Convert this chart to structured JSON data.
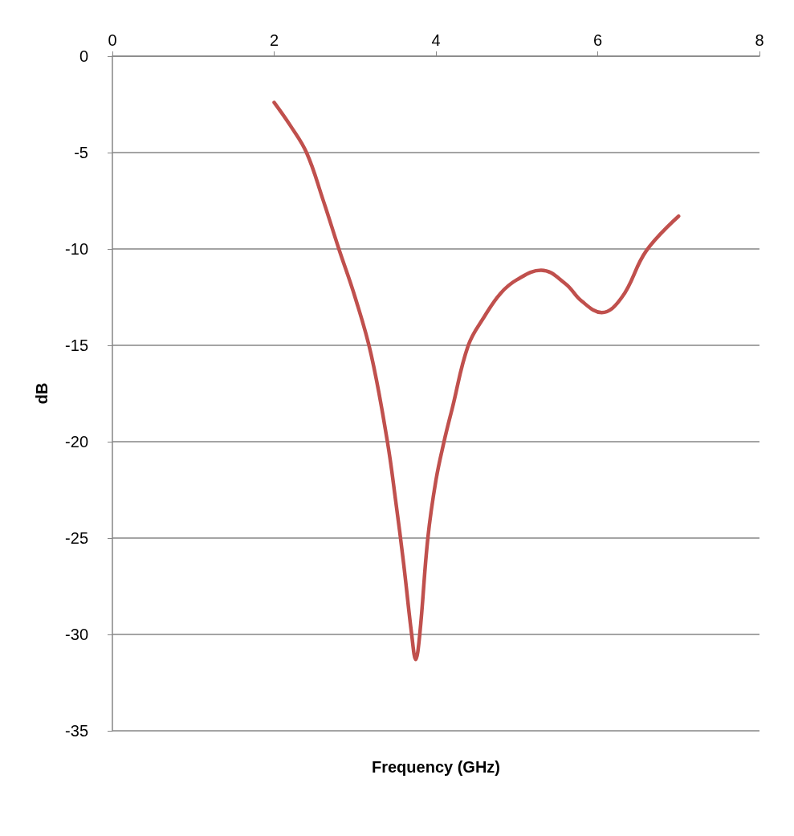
{
  "chart_data": {
    "type": "line",
    "xlabel": "Frequency (GHz)",
    "ylabel": "dB",
    "xlim": [
      0,
      8
    ],
    "xticks": [
      0,
      2,
      4,
      6,
      8
    ],
    "ylim": [
      -35,
      0
    ],
    "yticks": [
      -35,
      -30,
      -25,
      -20,
      -15,
      -10,
      -5,
      0
    ],
    "grid": "y",
    "marker": "none",
    "line_style": "solid",
    "series": [
      {
        "color": "#c0504d",
        "x": [
          2,
          2.2,
          2.4,
          2.6,
          2.8,
          3.0,
          3.2,
          3.4,
          3.5,
          3.6,
          3.7,
          3.75,
          3.8,
          3.9,
          4.0,
          4.1,
          4.2,
          4.4,
          4.6,
          4.8,
          5.0,
          5.3,
          5.6,
          5.8,
          6.05,
          6.3,
          6.6,
          7.0
        ],
        "values": [
          -2.4,
          -3.6,
          -5.0,
          -7.4,
          -10.0,
          -12.5,
          -15.5,
          -20.0,
          -23.0,
          -26.3,
          -30.0,
          -31.3,
          -30.0,
          -25.0,
          -22.0,
          -20.0,
          -18.3,
          -15.0,
          -13.5,
          -12.3,
          -11.6,
          -11.1,
          -11.8,
          -12.7,
          -13.3,
          -12.5,
          -10.1,
          -8.3
        ]
      }
    ]
  }
}
